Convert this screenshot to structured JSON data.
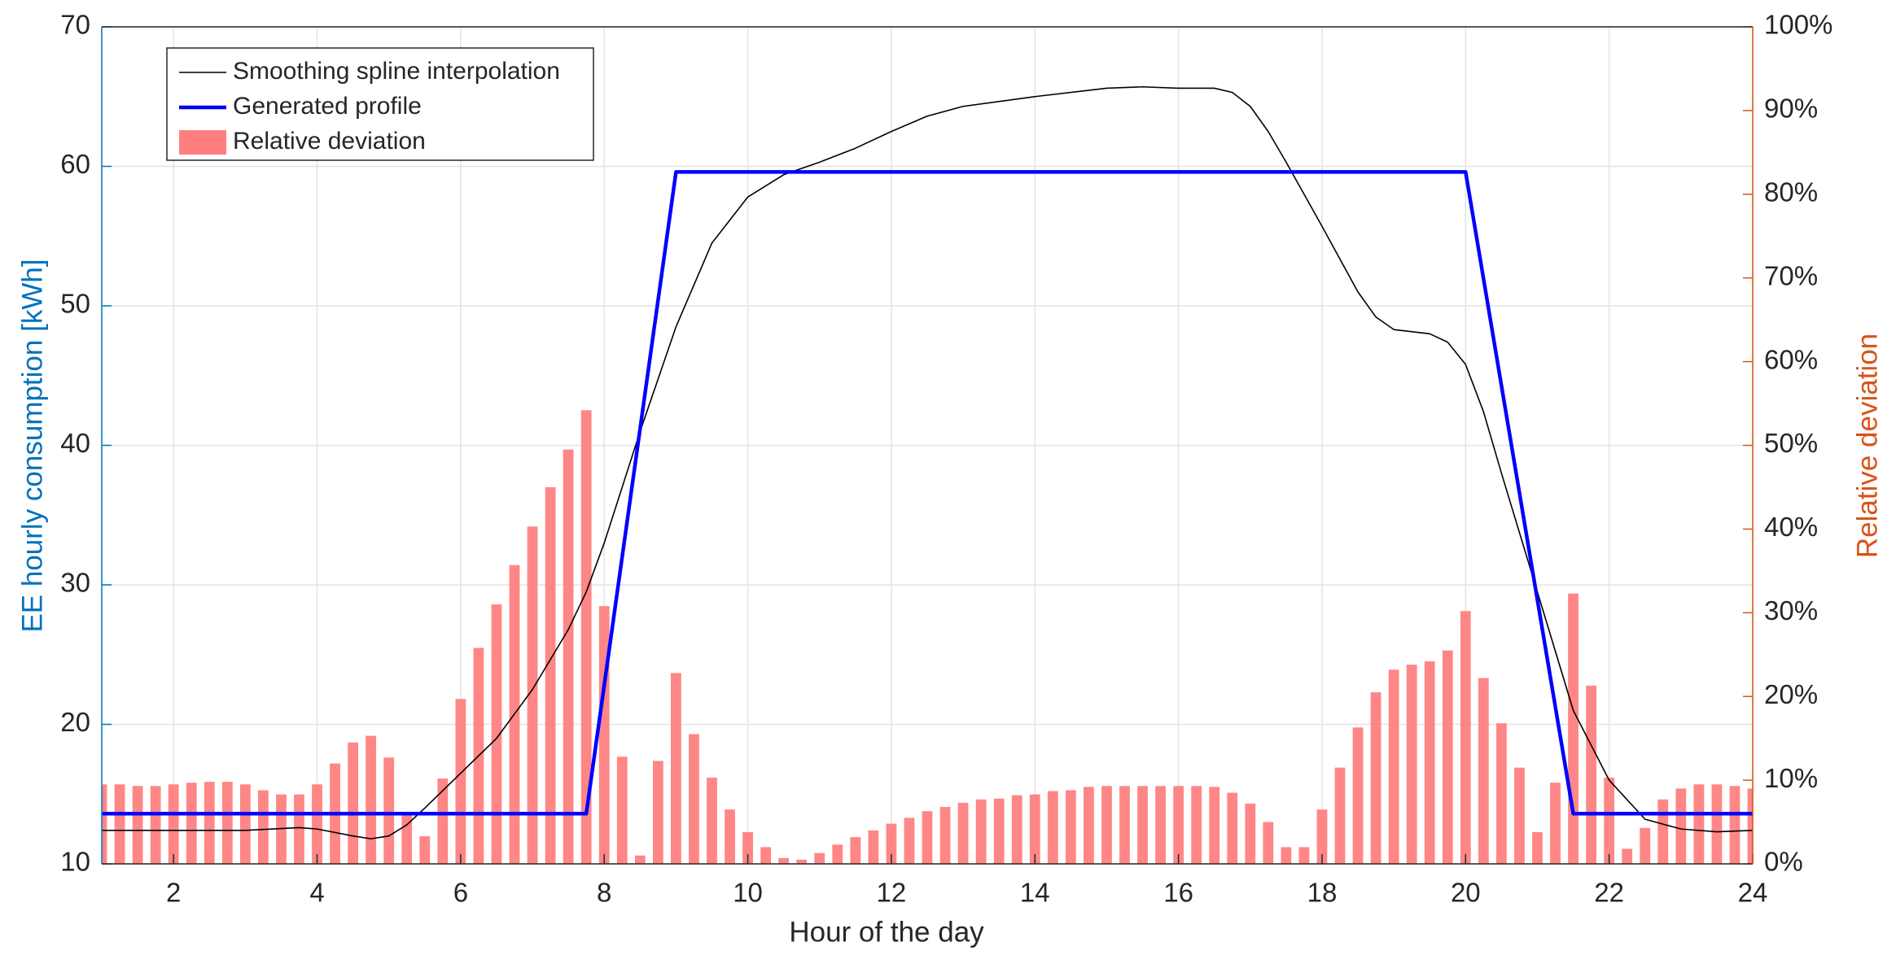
{
  "chart_data": {
    "type": "combo",
    "x_label": "Hour of the day",
    "y_label": "EE hourly consumption [kWh]",
    "y2_label": "Relative deviation",
    "xlim": [
      1,
      24
    ],
    "xticks": [
      2,
      4,
      6,
      8,
      10,
      12,
      14,
      16,
      18,
      20,
      22,
      24
    ],
    "ylim": [
      10,
      70
    ],
    "yticks": [
      10,
      20,
      30,
      40,
      50,
      60,
      70
    ],
    "y2lim": [
      0,
      100
    ],
    "y2ticks": [
      {
        "value": 0,
        "label": "0%"
      },
      {
        "value": 10,
        "label": "10%"
      },
      {
        "value": 20,
        "label": "20%"
      },
      {
        "value": 30,
        "label": "30%"
      },
      {
        "value": 40,
        "label": "40%"
      },
      {
        "value": 50,
        "label": "50%"
      },
      {
        "value": 60,
        "label": "60%"
      },
      {
        "value": 70,
        "label": "70%"
      },
      {
        "value": 80,
        "label": "80%"
      },
      {
        "value": 90,
        "label": "90%"
      },
      {
        "value": 100,
        "label": "100%"
      }
    ],
    "grid": true,
    "legend": "top-left",
    "y_color": "#0072bd",
    "y2_color": "#d95319",
    "series": [
      {
        "name": "Smoothing spline interpolation",
        "type": "line",
        "color": "#000000",
        "x": [
          1,
          2,
          3,
          3.75,
          4,
          4.5,
          4.75,
          5,
          5.25,
          5.5,
          6,
          6.5,
          7,
          7.5,
          7.75,
          8,
          8.5,
          9,
          9.5,
          10,
          10.5,
          11,
          11.5,
          12,
          12.5,
          13,
          14,
          15,
          15.5,
          16,
          16.5,
          16.75,
          17,
          17.25,
          17.5,
          18,
          18.5,
          18.75,
          19,
          19.5,
          19.75,
          20,
          20.25,
          20.5,
          21,
          21.5,
          22,
          22.5,
          23,
          23.5,
          24
        ],
        "values": [
          12.4,
          12.4,
          12.4,
          12.6,
          12.5,
          12.0,
          11.8,
          12.0,
          12.8,
          14.0,
          16.5,
          19.0,
          22.5,
          26.8,
          29.5,
          33.0,
          41.0,
          48.5,
          54.5,
          57.8,
          59.4,
          60.3,
          61.3,
          62.5,
          63.6,
          64.3,
          65.0,
          65.6,
          65.7,
          65.6,
          65.6,
          65.3,
          64.3,
          62.5,
          60.3,
          55.7,
          51.0,
          49.2,
          48.3,
          48.0,
          47.4,
          45.8,
          42.4,
          38.0,
          29.5,
          21.0,
          16.0,
          13.2,
          12.5,
          12.3,
          12.4
        ]
      },
      {
        "name": "Generated profile",
        "type": "line",
        "color": "#0000ff",
        "x": [
          1,
          7.75,
          9,
          20,
          21.5,
          24
        ],
        "values": [
          13.6,
          13.6,
          59.6,
          59.6,
          13.6,
          13.6
        ]
      },
      {
        "name": "Relative deviation",
        "type": "bar",
        "axis": "y2",
        "color": "#ff7f7f",
        "x": [
          1,
          1.25,
          1.5,
          1.75,
          2,
          2.25,
          2.5,
          2.75,
          3,
          3.25,
          3.5,
          3.75,
          4,
          4.25,
          4.5,
          4.75,
          5,
          5.25,
          5.5,
          5.75,
          6,
          6.25,
          6.5,
          6.75,
          7,
          7.25,
          7.5,
          7.75,
          8,
          8.25,
          8.5,
          8.75,
          9,
          9.25,
          9.5,
          9.75,
          10,
          10.25,
          10.5,
          10.75,
          11,
          11.25,
          11.5,
          11.75,
          12,
          12.25,
          12.5,
          12.75,
          13,
          13.25,
          13.5,
          13.75,
          14,
          14.25,
          14.5,
          14.75,
          15,
          15.25,
          15.5,
          15.75,
          16,
          16.25,
          16.5,
          16.75,
          17,
          17.25,
          17.5,
          17.75,
          18,
          18.25,
          18.5,
          18.75,
          19,
          19.25,
          19.5,
          19.75,
          20,
          20.25,
          20.5,
          20.75,
          21,
          21.25,
          21.5,
          21.75,
          22,
          22.25,
          22.5,
          22.75,
          23,
          23.25,
          23.5,
          23.75,
          24
        ],
        "values": [
          9.5,
          9.5,
          9.3,
          9.3,
          9.5,
          9.7,
          9.8,
          9.8,
          9.5,
          8.8,
          8.3,
          8.3,
          9.5,
          12.0,
          14.5,
          15.3,
          12.7,
          6.0,
          3.3,
          10.2,
          19.7,
          25.8,
          31.0,
          35.7,
          40.3,
          45.0,
          49.5,
          54.2,
          30.8,
          12.8,
          1.0,
          12.3,
          22.8,
          15.5,
          10.3,
          6.5,
          3.8,
          2.0,
          0.7,
          0.5,
          1.3,
          2.3,
          3.2,
          4.0,
          4.8,
          5.5,
          6.3,
          6.8,
          7.3,
          7.7,
          7.8,
          8.2,
          8.3,
          8.7,
          8.8,
          9.2,
          9.3,
          9.3,
          9.3,
          9.3,
          9.3,
          9.3,
          9.2,
          8.5,
          7.2,
          5.0,
          2.0,
          2.0,
          6.5,
          11.5,
          16.3,
          20.5,
          23.2,
          23.8,
          24.2,
          25.5,
          30.2,
          22.2,
          16.8,
          11.5,
          3.8,
          9.7,
          32.3,
          21.3,
          10.3,
          1.8,
          4.3,
          7.7,
          9.0,
          9.5,
          9.5,
          9.3,
          9.0
        ]
      }
    ]
  }
}
